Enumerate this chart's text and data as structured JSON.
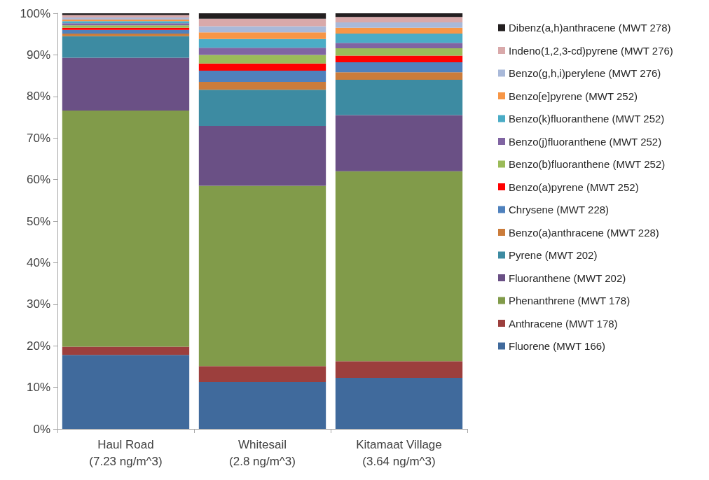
{
  "chart_data": {
    "type": "bar",
    "stacked": true,
    "categories": [
      "Haul Road\n(7.23 ng/m^3)",
      "Whitesail\n(2.8 ng/m^3)",
      "Kitamaat Village\n(3.64 ng/m^3)"
    ],
    "ylim": [
      0,
      100
    ],
    "yticks": [
      {
        "value": 0,
        "label": "0%"
      },
      {
        "value": 10,
        "label": "10%"
      },
      {
        "value": 20,
        "label": "20%"
      },
      {
        "value": 30,
        "label": "30%"
      },
      {
        "value": 40,
        "label": "40%"
      },
      {
        "value": 50,
        "label": "50%"
      },
      {
        "value": 60,
        "label": "60%"
      },
      {
        "value": 70,
        "label": "70%"
      },
      {
        "value": 80,
        "label": "80%"
      },
      {
        "value": 90,
        "label": "90%"
      },
      {
        "value": 100,
        "label": "100%"
      }
    ],
    "grid": false,
    "legend": "right",
    "series": [
      {
        "name": "Fluorene (MWT 166)",
        "color": "#406a9c",
        "values": [
          17.8,
          11.3,
          12.3
        ]
      },
      {
        "name": "Anthracene (MWT 178)",
        "color": "#9c3f3d",
        "values": [
          2.0,
          3.8,
          4.0
        ]
      },
      {
        "name": "Phenanthrene (MWT 178)",
        "color": "#819b4a",
        "values": [
          56.8,
          43.4,
          45.7
        ]
      },
      {
        "name": "Fluoranthene (MWT 202)",
        "color": "#6a5085",
        "values": [
          12.7,
          14.4,
          13.5
        ]
      },
      {
        "name": "Pyrene (MWT 202)",
        "color": "#3d8ba2",
        "values": [
          5.2,
          8.7,
          8.5
        ]
      },
      {
        "name": "Benzo(a)anthracene (MWT 228)",
        "color": "#cb7c3b",
        "values": [
          0.6,
          1.9,
          1.8
        ]
      },
      {
        "name": "Chrysene (MWT 228)",
        "color": "#4f81bd",
        "values": [
          0.9,
          2.7,
          2.4
        ]
      },
      {
        "name": "Benzo(a)pyrene (MWT 252)",
        "color": "#ff0000",
        "values": [
          0.5,
          1.7,
          1.6
        ]
      },
      {
        "name": "Benzo(b)fluoranthene (MWT 252)",
        "color": "#9bbb59",
        "values": [
          0.6,
          2.1,
          1.8
        ]
      },
      {
        "name": "Benzo(j)fluoranthene (MWT 252)",
        "color": "#8064a2",
        "values": [
          0.5,
          1.7,
          1.3
        ]
      },
      {
        "name": "Benzo(k)fluoranthene (MWT 252)",
        "color": "#4bacc6",
        "values": [
          0.5,
          2.1,
          2.2
        ]
      },
      {
        "name": "Benzo[e]pyrene (MWT 252)",
        "color": "#f79646",
        "values": [
          0.4,
          1.6,
          1.4
        ]
      },
      {
        "name": "Benzo(g,h,i)perylene (MWT 276)",
        "color": "#a9b9d9",
        "values": [
          0.5,
          1.5,
          1.3
        ]
      },
      {
        "name": "Indeno(1,2,3-cd)pyrene (MWT 276)",
        "color": "#d9a9aa",
        "values": [
          0.6,
          1.8,
          1.3
        ]
      },
      {
        "name": "Dibenz(a,h)anthracene (MWT 278)",
        "color": "#231f20",
        "values": [
          0.4,
          1.3,
          0.9
        ]
      }
    ]
  }
}
